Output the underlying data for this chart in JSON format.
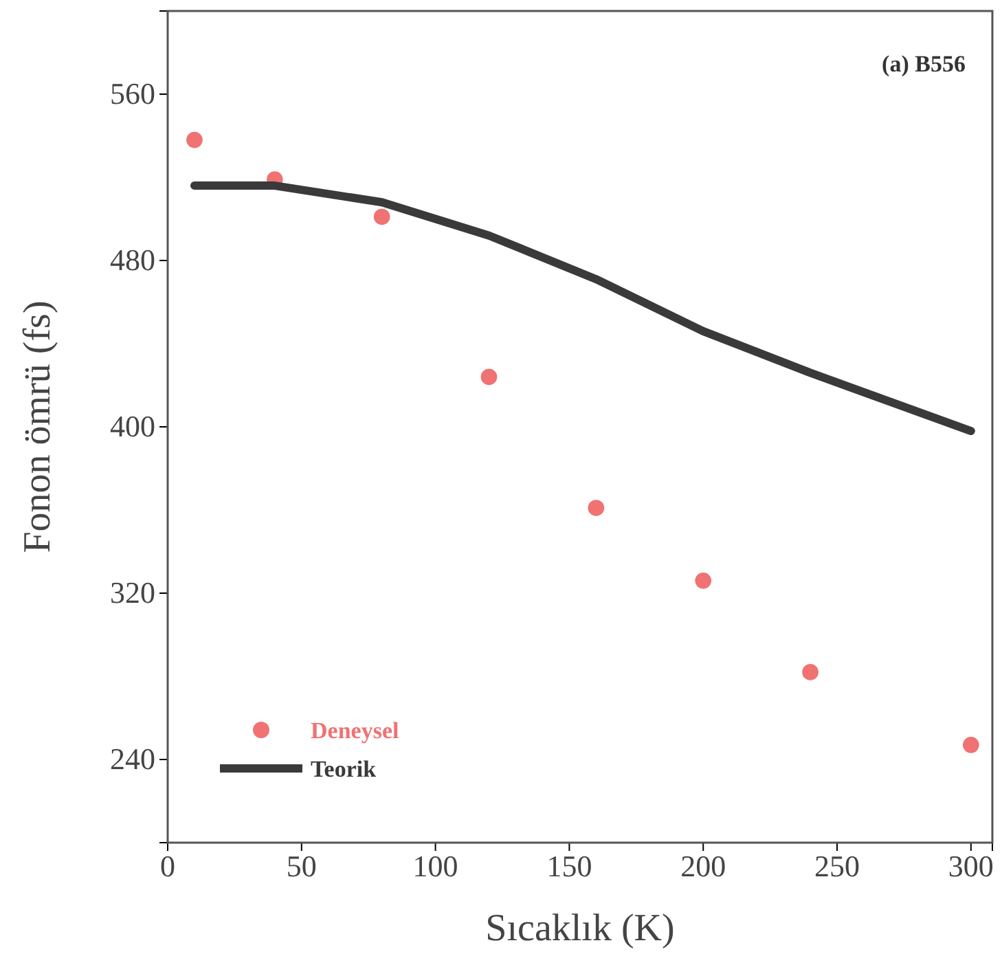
{
  "chart_data": {
    "type": "scatter",
    "xlabel": "Sıcaklık (K)",
    "ylabel": "Fonon ömrü (fs)",
    "annotations": [
      "(a) B556"
    ],
    "xlim": [
      0,
      308
    ],
    "xticks": [
      0,
      50,
      100,
      150,
      200,
      250,
      300
    ],
    "ylim": [
      200,
      600
    ],
    "yticks": [
      240,
      320,
      400,
      480,
      560
    ],
    "legend": "bottom left",
    "grid": false,
    "series": [
      {
        "name": "Deneysel",
        "color": "#f07272",
        "marker": "circle",
        "x": [
          10,
          40,
          80,
          120,
          160,
          200,
          240,
          300
        ],
        "values": [
          538,
          519,
          501,
          424,
          361,
          326,
          282,
          247
        ]
      },
      {
        "name": "Teorik",
        "type": "line",
        "color": "#3a3a3a",
        "line_style": "solid",
        "x": [
          10,
          40,
          80,
          120,
          160,
          200,
          240,
          300
        ],
        "values": [
          516,
          516,
          508,
          492,
          471,
          446,
          426,
          398
        ]
      }
    ]
  }
}
